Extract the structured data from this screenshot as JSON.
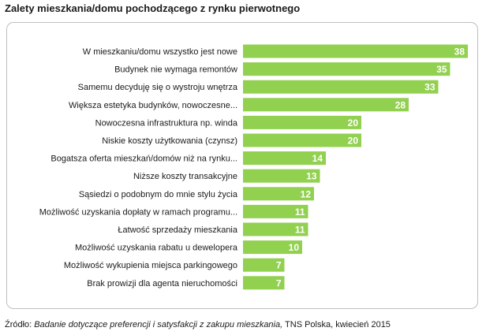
{
  "title": "Zalety mieszkania/domu pochodzącego z rynku pierwotnego",
  "source": {
    "prefix": "Źródło: ",
    "study": "Badanie dotyczące preferencji i satysfakcji z zakupu mieszkania,",
    "suffix": " TNS Polska, kwiecień 2015"
  },
  "colors": {
    "bar": "#92d050",
    "value_text": "#ffffff"
  },
  "chart_data": {
    "type": "bar",
    "orientation": "horizontal",
    "title": "Zalety mieszkania/domu pochodzącego z rynku pierwotnego",
    "xlabel": "",
    "ylabel": "",
    "xlim": [
      0,
      40
    ],
    "grid": false,
    "legend": "none",
    "categories": [
      "W mieszkaniu/domu wszystko jest nowe",
      "Budynek nie wymaga remontów",
      "Samemu decyduję się o wystroju wnętrza",
      "Większa estetyka budynków, nowoczesne...",
      "Nowoczesna infrastruktura np. winda",
      "Niskie koszty użytkowania (czynsz)",
      "Bogatsza oferta mieszkań/domów niż na rynku...",
      "Niższe koszty transakcyjne",
      "Sąsiedzi o podobnym do mnie stylu życia",
      "Możliwość uzyskania dopłaty w ramach programu...",
      "Łatwość sprzedaży mieszkania",
      "Możliwość uzyskania rabatu u dewelopera",
      "Możliwość wykupienia miejsca parkingowego",
      "Brak prowizji dla agenta nieruchomości"
    ],
    "values": [
      38,
      35,
      33,
      28,
      20,
      20,
      14,
      13,
      12,
      11,
      11,
      10,
      7,
      7
    ]
  }
}
